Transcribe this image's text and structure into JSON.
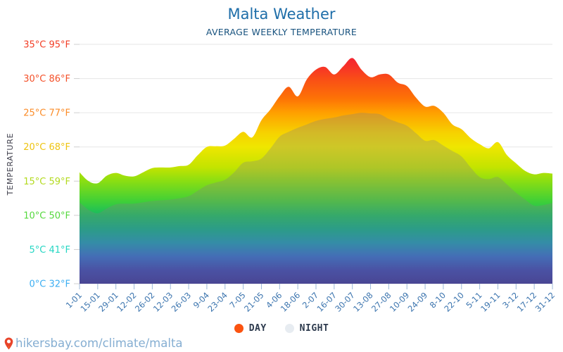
{
  "footer": {
    "url": "hikersbay.com/climate/malta"
  },
  "chart_data": {
    "type": "area",
    "title": "Malta Weather",
    "subtitle": "AVERAGE WEEKLY TEMPERATURE",
    "ylabel": "TEMPERATURE",
    "ylim": [
      0,
      35
    ],
    "grid": true,
    "legend_position": "bottom",
    "x_tick_labels": [
      "1-01",
      "15-01",
      "29-01",
      "12-02",
      "26-02",
      "12-03",
      "26-03",
      "9-04",
      "23-04",
      "7-05",
      "21-05",
      "4-06",
      "18-06",
      "2-07",
      "16-07",
      "30-07",
      "13-08",
      "27-08",
      "10-09",
      "24-09",
      "8-10",
      "22-10",
      "5-11",
      "19-11",
      "3-12",
      "17-12",
      "31-12"
    ],
    "x_unit": "weeks, day-month, full year",
    "y_ticks": [
      {
        "value": 0,
        "label": "0°C 32°F",
        "color": "#3caef2"
      },
      {
        "value": 5,
        "label": "5°C 41°F",
        "color": "#25d6c3"
      },
      {
        "value": 10,
        "label": "10°C 50°F",
        "color": "#55d83d"
      },
      {
        "value": 15,
        "label": "15°C 59°F",
        "color": "#b3da1f"
      },
      {
        "value": 20,
        "label": "20°C 68°F",
        "color": "#eec411"
      },
      {
        "value": 25,
        "label": "25°C 77°F",
        "color": "#fb8c28"
      },
      {
        "value": 30,
        "label": "30°C 86°F",
        "color": "#f4512a"
      },
      {
        "value": 35,
        "label": "35°C 95°F",
        "color": "#f23d25"
      }
    ],
    "series": [
      {
        "name": "DAY",
        "dot_color": "#fb5310",
        "fill": "rainbow-gradient",
        "values": [
          16.3,
          15.0,
          14.7,
          15.8,
          16.2,
          15.8,
          15.7,
          16.3,
          16.9,
          17.0,
          17.0,
          17.2,
          17.4,
          18.8,
          20.0,
          20.1,
          20.2,
          21.2,
          22.2,
          21.4,
          23.9,
          25.5,
          27.4,
          28.8,
          27.4,
          29.9,
          31.3,
          31.7,
          30.6,
          31.8,
          33.0,
          31.3,
          30.2,
          30.6,
          30.6,
          29.4,
          28.9,
          27.2,
          25.9,
          26.0,
          25.0,
          23.3,
          22.6,
          21.3,
          20.4,
          19.8,
          20.7,
          18.8,
          17.6,
          16.5,
          16.0,
          16.2,
          16.1
        ]
      },
      {
        "name": "NIGHT",
        "dot_color": "#e7ecf1",
        "fill": "rgba(128,128,128,0.30)",
        "values": [
          11.9,
          10.8,
          10.3,
          11.0,
          11.6,
          11.7,
          11.7,
          11.9,
          12.1,
          12.2,
          12.3,
          12.5,
          12.8,
          13.6,
          14.4,
          14.8,
          15.2,
          16.3,
          17.7,
          17.9,
          18.3,
          19.8,
          21.5,
          22.2,
          22.8,
          23.3,
          23.8,
          24.1,
          24.3,
          24.6,
          24.8,
          25.0,
          24.9,
          24.8,
          24.1,
          23.6,
          23.1,
          22.0,
          20.9,
          21.0,
          20.2,
          19.4,
          18.6,
          17.0,
          15.6,
          15.3,
          15.6,
          14.5,
          13.3,
          12.3,
          11.4,
          11.5,
          11.8
        ]
      }
    ],
    "gradient_stops": [
      {
        "temp": 35,
        "color": "#ee123d"
      },
      {
        "temp": 32,
        "color": "#f62e2a"
      },
      {
        "temp": 30,
        "color": "#f94d17"
      },
      {
        "temp": 27,
        "color": "#fd7405"
      },
      {
        "temp": 25,
        "color": "#ffa000"
      },
      {
        "temp": 22,
        "color": "#f6d300"
      },
      {
        "temp": 20,
        "color": "#efe600"
      },
      {
        "temp": 17,
        "color": "#c3e400"
      },
      {
        "temp": 15,
        "color": "#8ade12"
      },
      {
        "temp": 12,
        "color": "#3ecf38"
      },
      {
        "temp": 10,
        "color": "#16bb61"
      },
      {
        "temp": 8,
        "color": "#08a88a"
      },
      {
        "temp": 6,
        "color": "#1492b8"
      },
      {
        "temp": 4,
        "color": "#2a66cd"
      },
      {
        "temp": 2,
        "color": "#333eb3"
      },
      {
        "temp": 0,
        "color": "#322d9c"
      }
    ],
    "axis_colors": {
      "gridline": "#e6e6e6",
      "y_tick_dash": "#cfcfcf",
      "x_tick": "#9db9d9",
      "x_label": "#3b74ae",
      "y_axis_title": "#3d3d4a"
    }
  }
}
